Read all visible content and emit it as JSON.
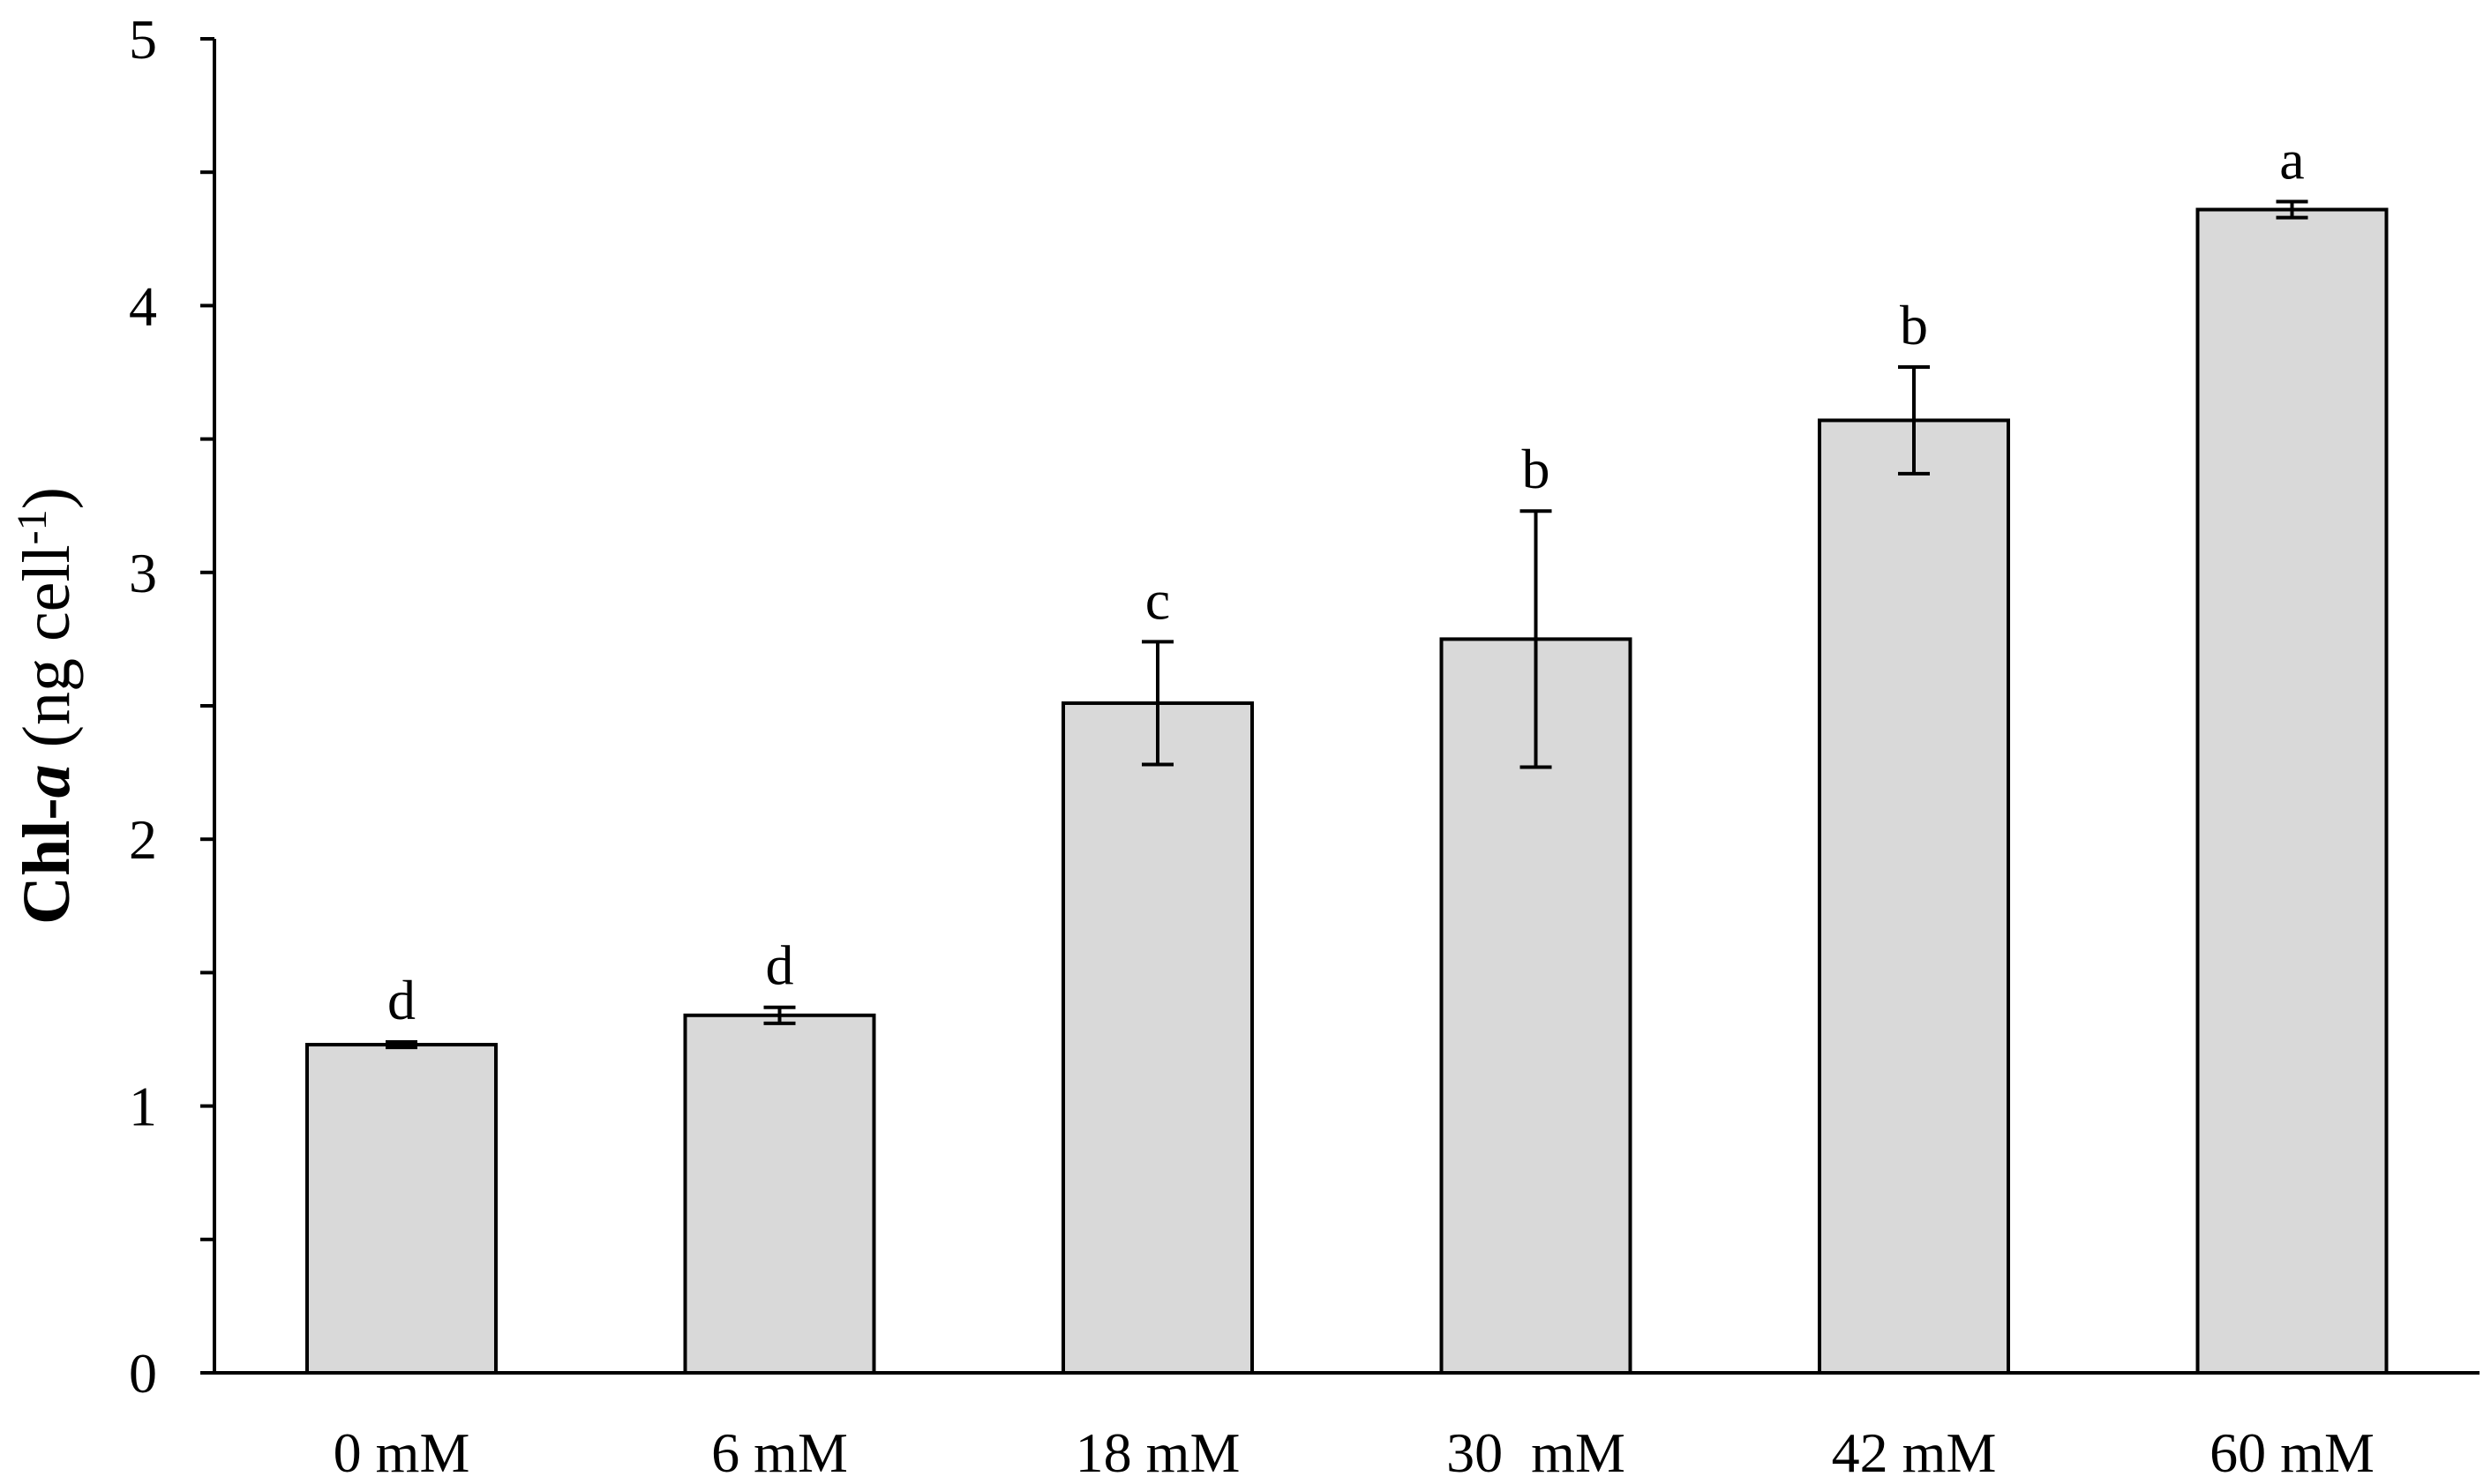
{
  "chart_data": {
    "type": "bar",
    "title": "",
    "xlabel": "",
    "ylabel": {
      "bold_part": "Chl-",
      "bold_italic_part": "a",
      "unit_part": " (ng cell",
      "superscript": "-1",
      "close": ")"
    },
    "ylim": [
      0,
      5
    ],
    "yticks": [
      "0",
      "1",
      "2",
      "3",
      "4",
      "5"
    ],
    "categories": [
      "0 mM",
      "6 mM",
      "18 mM",
      "30  mM",
      "42 mM",
      "60 mM"
    ],
    "values": [
      1.23,
      1.34,
      2.51,
      2.75,
      3.57,
      4.36
    ],
    "errors": [
      0.01,
      0.03,
      0.23,
      0.48,
      0.2,
      0.03
    ],
    "significance_labels": [
      "d",
      "d",
      "c",
      "b",
      "b",
      "a"
    ],
    "grid": false,
    "legend": "none",
    "colors": {
      "bar_fill": "#d9d9d9",
      "bar_stroke": "#000000",
      "axis": "#000000"
    }
  }
}
